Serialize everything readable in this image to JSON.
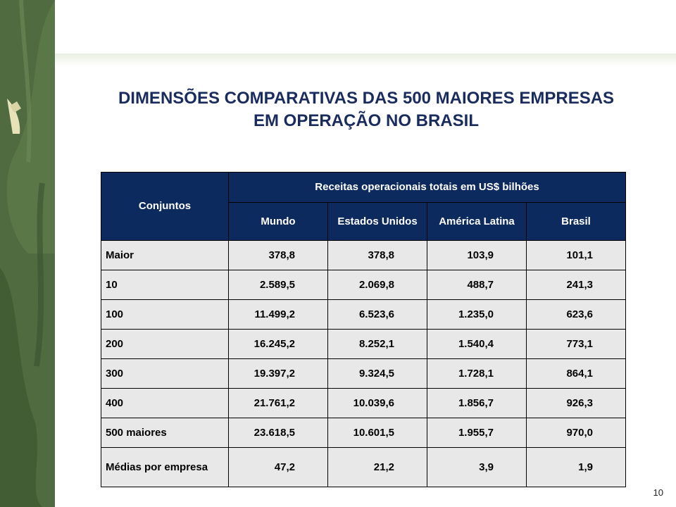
{
  "title": {
    "line1": "DIMENSÕES COMPARATIVAS DAS 500 MAIORES EMPRESAS",
    "line2": "EM OPERAÇÃO NO BRASIL"
  },
  "table": {
    "row_header": "Conjuntos",
    "group_header": "Receitas operacionais totais em US$ bilhões",
    "columns": [
      "Mundo",
      "Estados Unidos",
      "América Latina",
      "Brasil"
    ],
    "rows": [
      {
        "label": "Maior",
        "values": [
          "378,8",
          "378,8",
          "103,9",
          "101,1"
        ]
      },
      {
        "label": "10",
        "values": [
          "2.589,5",
          "2.069,8",
          "488,7",
          "241,3"
        ]
      },
      {
        "label": "100",
        "values": [
          "11.499,2",
          "6.523,6",
          "1.235,0",
          "623,6"
        ]
      },
      {
        "label": "200",
        "values": [
          "16.245,2",
          "8.252,1",
          "1.540,4",
          "773,1"
        ]
      },
      {
        "label": "300",
        "values": [
          "19.397,2",
          "9.324,5",
          "1.728,1",
          "864,1"
        ]
      },
      {
        "label": "400",
        "values": [
          "21.761,2",
          "10.039,6",
          "1.856,7",
          "926,3"
        ]
      },
      {
        "label": "500 maiores",
        "values": [
          "23.618,5",
          "10.601,5",
          "1.955,7",
          "970,0"
        ]
      },
      {
        "label": "Médias por empresa",
        "values": [
          "47,2",
          "21,2",
          "3,9",
          "1,9"
        ]
      }
    ]
  },
  "page_number": "10",
  "colors": {
    "title": "#1a2b5e",
    "header_bg": "#0c2a5e",
    "cell_bg": "#e8e8e8",
    "side_band": "#4f6b3f"
  }
}
